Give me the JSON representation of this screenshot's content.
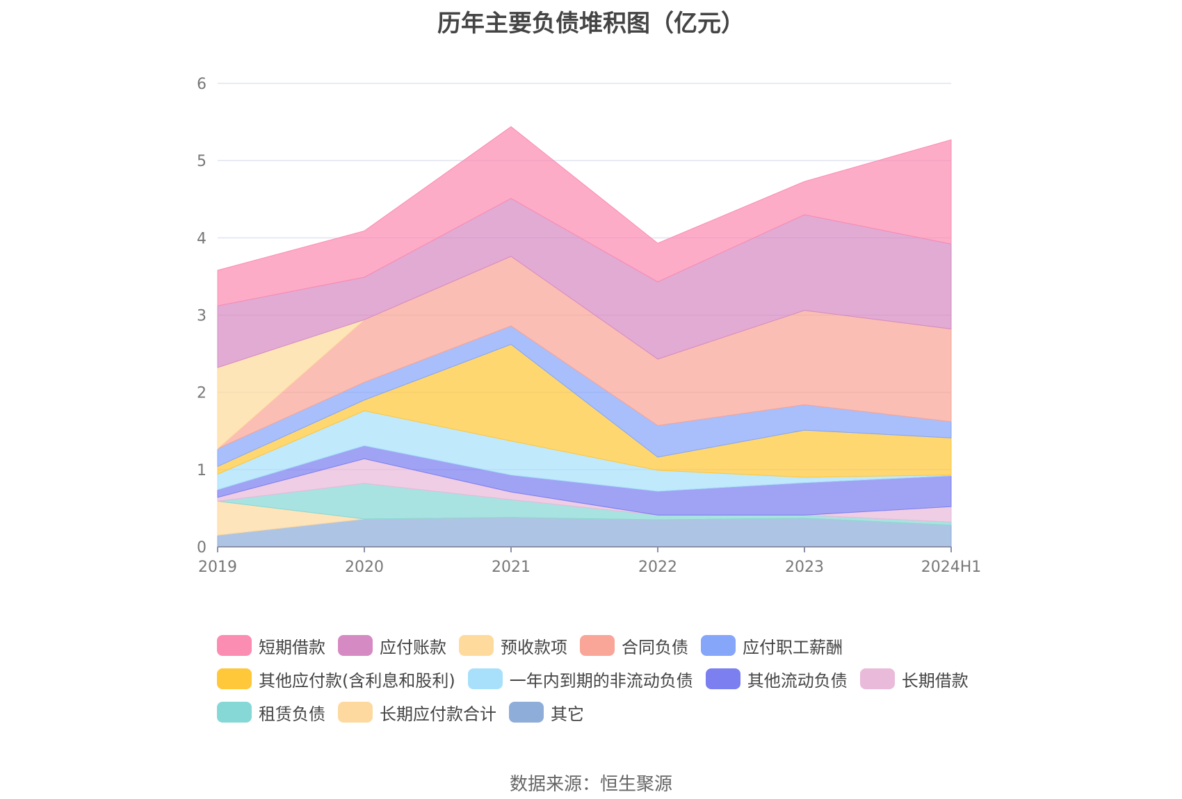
{
  "chart_data": {
    "type": "area",
    "title": "历年主要负债堆积图（亿元）",
    "x": [
      "2019",
      "2020",
      "2021",
      "2022",
      "2023",
      "2024H1"
    ],
    "ylim": [
      0,
      6
    ],
    "yticks": [
      "0",
      "1",
      "2",
      "3",
      "4",
      "5",
      "6"
    ],
    "grid": true,
    "legend_position": "bottom",
    "stacked": true,
    "series": [
      {
        "name": "其它",
        "color": "#8fadd9",
        "values": [
          0.15,
          0.36,
          0.38,
          0.35,
          0.37,
          0.28
        ]
      },
      {
        "name": "长期应付款合计",
        "color": "#fdd9a0",
        "values": [
          0.44,
          0.0,
          0.0,
          0.0,
          0.0,
          0.0
        ]
      },
      {
        "name": "租赁负债",
        "color": "#86d8d6",
        "values": [
          0.0,
          0.46,
          0.23,
          0.06,
          0.04,
          0.04
        ]
      },
      {
        "name": "长期借款",
        "color": "#e9bad9",
        "values": [
          0.05,
          0.32,
          0.1,
          0.0,
          0.0,
          0.2
        ]
      },
      {
        "name": "其他流动负债",
        "color": "#7b7ff0",
        "values": [
          0.1,
          0.17,
          0.22,
          0.31,
          0.42,
          0.4
        ]
      },
      {
        "name": "一年内到期的非流动负债",
        "color": "#a8e0fb",
        "values": [
          0.2,
          0.45,
          0.44,
          0.27,
          0.07,
          0.01
        ]
      },
      {
        "name": "其他应付款(含利息和股利)",
        "color": "#ffc73a",
        "values": [
          0.1,
          0.14,
          1.25,
          0.17,
          0.61,
          0.48
        ]
      },
      {
        "name": "应付职工薪酬",
        "color": "#86a6fa",
        "values": [
          0.23,
          0.23,
          0.24,
          0.41,
          0.33,
          0.21
        ]
      },
      {
        "name": "合同负债",
        "color": "#f9a597",
        "values": [
          0.0,
          0.81,
          0.9,
          0.86,
          1.22,
          1.2
        ]
      },
      {
        "name": "预收款项",
        "color": "#fedb9d",
        "values": [
          1.05,
          0.0,
          0.0,
          0.0,
          0.0,
          0.0
        ]
      },
      {
        "name": "应付账款",
        "color": "#d68ac3",
        "values": [
          0.8,
          0.55,
          0.75,
          1.0,
          1.24,
          1.1
        ]
      },
      {
        "name": "短期借款",
        "color": "#fb8cb2",
        "values": [
          0.46,
          0.6,
          0.93,
          0.5,
          0.43,
          1.35
        ]
      }
    ]
  },
  "legend_rows": [
    [
      "短期借款",
      "应付账款",
      "预收款项",
      "合同负债",
      "应付职工薪酬"
    ],
    [
      "其他应付款(含利息和股利)",
      "一年内到期的非流动负债",
      "其他流动负债",
      "长期借款"
    ],
    [
      "租赁负债",
      "长期应付款合计",
      "其它"
    ]
  ],
  "source": "数据来源：恒生聚源"
}
